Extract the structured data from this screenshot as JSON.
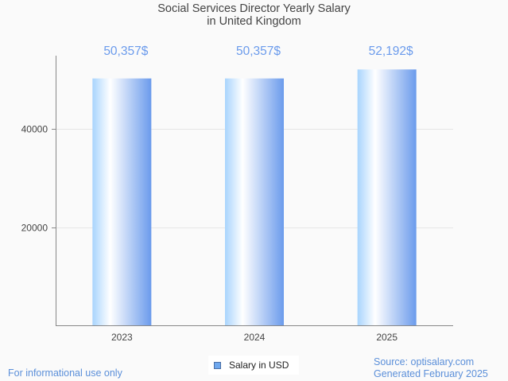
{
  "chart_data": {
    "type": "bar",
    "title_lines": [
      "Social Services Director Yearly Salary",
      "in United Kingdom"
    ],
    "categories": [
      "2023",
      "2024",
      "2025"
    ],
    "series": [
      {
        "name": "Salary in USD",
        "values": [
          50357,
          50357,
          52192
        ]
      }
    ],
    "data_labels": [
      "50,357$",
      "50,357$",
      "52,192$"
    ],
    "xlabel": "",
    "ylabel": "",
    "ylim": [
      0,
      55000
    ],
    "yticks": [
      20000,
      40000
    ],
    "ytick_labels": [
      "20000",
      "40000"
    ],
    "grid": true,
    "legend_position": "bottom-center",
    "colors": {
      "bar_gradient": [
        "#a8d4fd",
        "#ffffff",
        "#6b9bec"
      ],
      "data_label": "#6b9bec",
      "axis": "#888888",
      "grid": "#e6e6e6",
      "legend_swatch": "#6fa8ee"
    }
  },
  "footer": {
    "disclaimer": "For informational use only",
    "source": "Source: optisalary.com",
    "generated": "Generated February 2025"
  }
}
